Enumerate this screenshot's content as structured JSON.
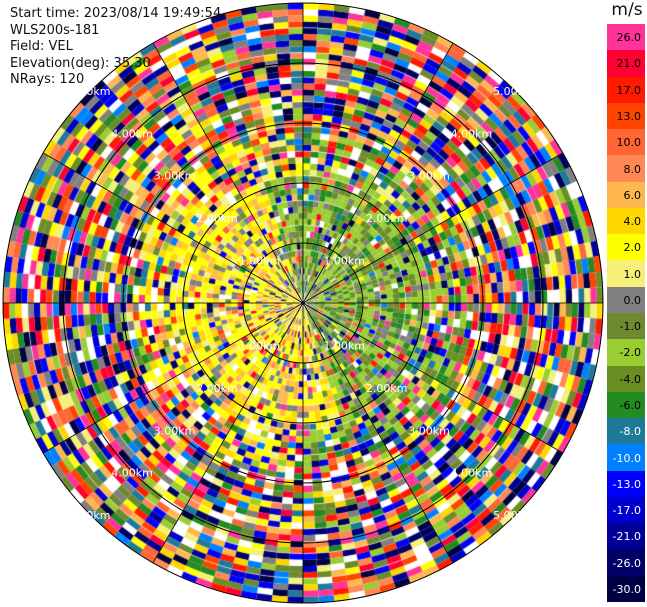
{
  "info": {
    "start_time": "Start time: 2023/08/14 19:49:54",
    "instrument": "WLS200s-181",
    "field": "Field: VEL",
    "elevation": "Elevation(deg): 35.30",
    "nrays": "NRays: 120"
  },
  "colorbar": {
    "unit": "m/s",
    "labels": [
      "26.0",
      "21.0",
      "17.0",
      "13.0",
      "10.0",
      "8.0",
      "6.0",
      "4.0",
      "2.0",
      "1.0",
      "0.0",
      "-1.0",
      "-2.0",
      "-4.0",
      "-6.0",
      "-8.0",
      "-10.0",
      "-13.0",
      "-17.0",
      "-21.0",
      "-26.0",
      "-30.0"
    ],
    "colors": [
      "#ff3399",
      "#ff0033",
      "#ff1a00",
      "#ff4400",
      "#ff6633",
      "#ff8855",
      "#ffb84d",
      "#ffd700",
      "#ffff00",
      "#f5f07a",
      "#808080",
      "#6e8a30",
      "#9acd32",
      "#6b8e23",
      "#228b22",
      "#1f7a9a",
      "#0080ff",
      "#0000ff",
      "#0000cc",
      "#000099",
      "#000066",
      "#000044"
    ]
  },
  "chart_data": {
    "type": "heatmap",
    "subtype": "polar-ppi",
    "field": "VEL",
    "rays": 120,
    "range_rings_labels": [
      "1.00km",
      "2.00km",
      "3.00km",
      "4.00km",
      "5.00km"
    ],
    "color_scale": "diverging velocity, -30 to 26 m/s"
  }
}
